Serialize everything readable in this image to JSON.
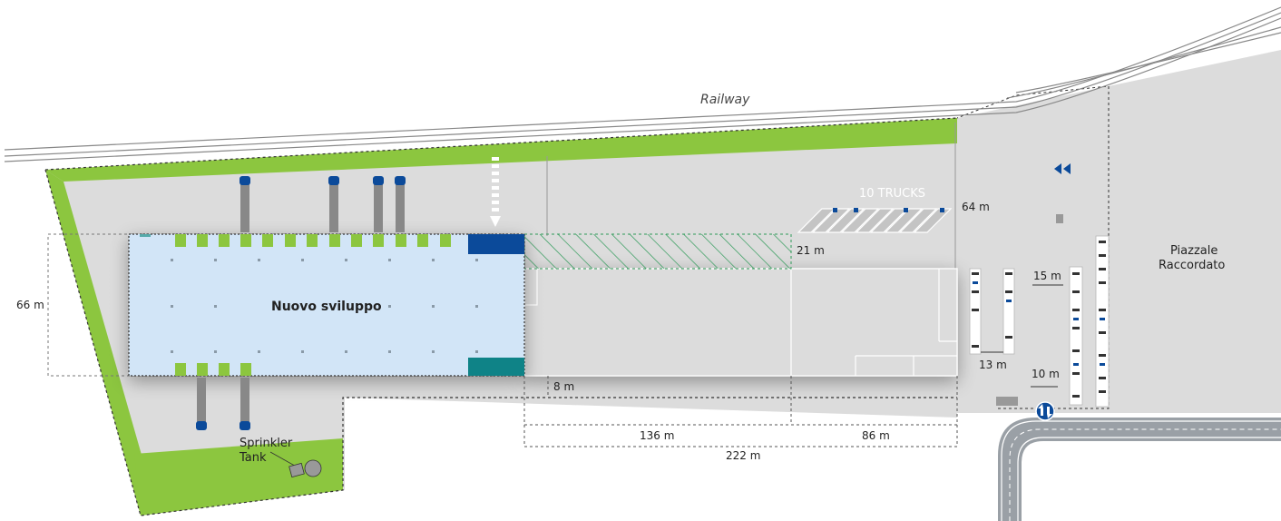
{
  "labels": {
    "railway": "Railway",
    "new_dev": "Nuovo sviluppo",
    "trucks": "10 TRUCKS",
    "sprinkler_line1": "Sprinkler",
    "sprinkler_line2": "Tank",
    "piazzale_line1": "Piazzale",
    "piazzale_line2": "Raccordato"
  },
  "dimensions": {
    "height_66": "66 m",
    "truck_depth_64": "64 m",
    "hatch_21": "21 m",
    "gap_8": "8 m",
    "width_136": "136 m",
    "width_86": "86 m",
    "width_222": "222 m",
    "parking_15": "15 m",
    "parking_13": "13 m",
    "parking_10": "10 m"
  },
  "colors": {
    "ground": "#dcdcdc",
    "green": "#8cc63f",
    "new_dev_fill": "#d2e5f7",
    "dark_blue": "#0b4a9a",
    "teal": "#0f8387",
    "road": "#9aa0a6",
    "hatch_green": "#2e9a58"
  },
  "icons": {
    "direction": "double-chevron-left-icon",
    "roundabout": "roundabout-icon"
  }
}
